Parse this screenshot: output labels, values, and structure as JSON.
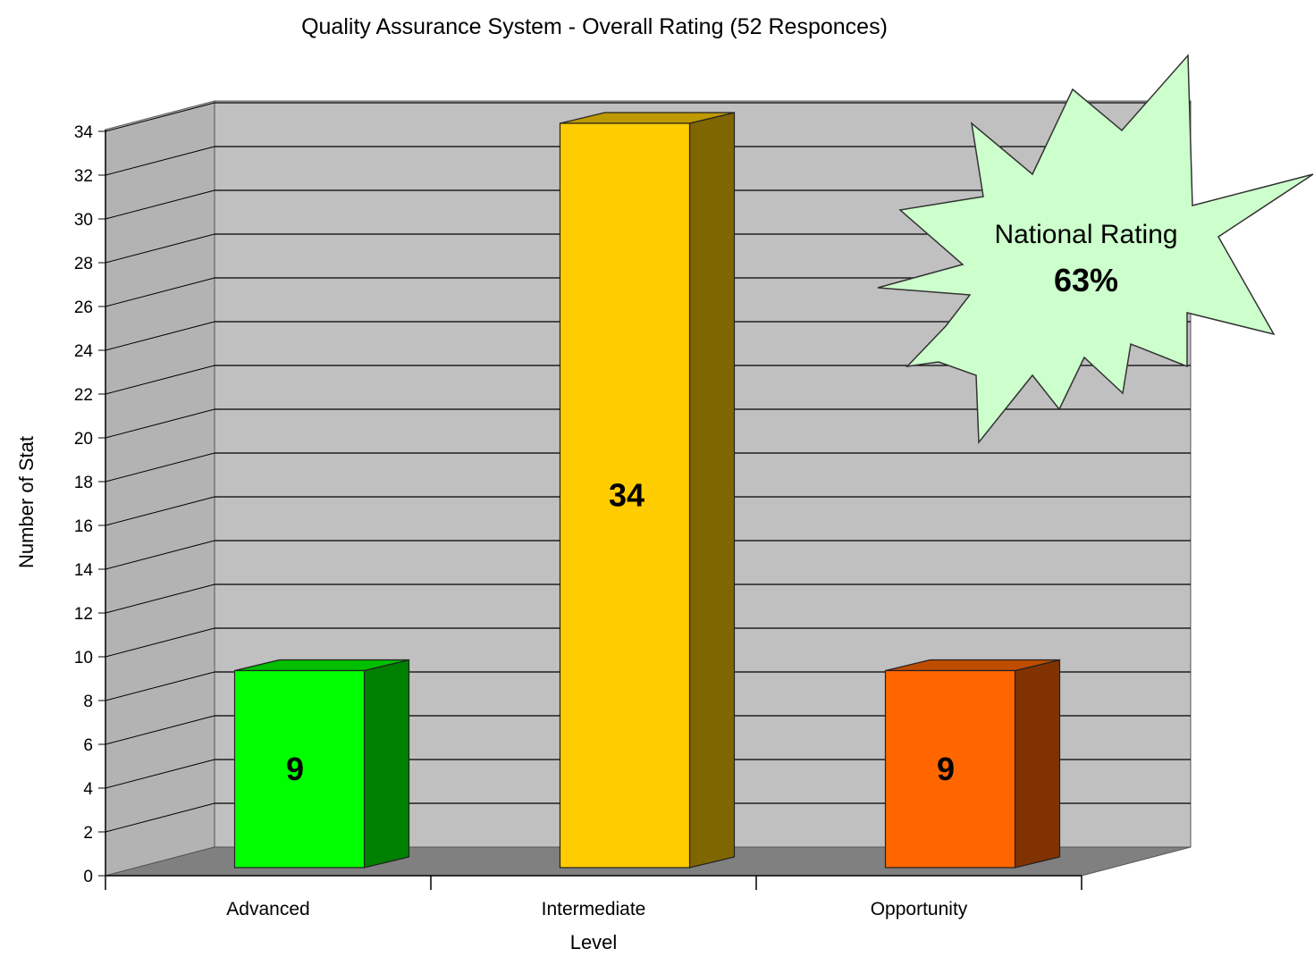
{
  "chart_data": {
    "type": "bar",
    "title": "Quality Assurance System - Overall Rating (52 Responces)",
    "xlabel": "Level",
    "ylabel": "Number of Stat",
    "categories": [
      "Advanced",
      "Intermediate",
      "Opportunity"
    ],
    "values": [
      9,
      34,
      9
    ],
    "data_labels": [
      "9",
      "34",
      "9"
    ],
    "ylim": [
      0,
      34
    ],
    "yticks": [
      "0",
      "2",
      "4",
      "6",
      "8",
      "10",
      "12",
      "14",
      "16",
      "18",
      "20",
      "22",
      "24",
      "26",
      "28",
      "30",
      "32",
      "34"
    ],
    "bar_colors": [
      "#00ff00",
      "#ffcc00",
      "#ff6600"
    ],
    "grid": true,
    "style": "3d",
    "annotation": {
      "shape": "starburst",
      "line1": "National Rating",
      "line2": "63%",
      "fill": "#ccffcc",
      "position": "top-right"
    }
  }
}
